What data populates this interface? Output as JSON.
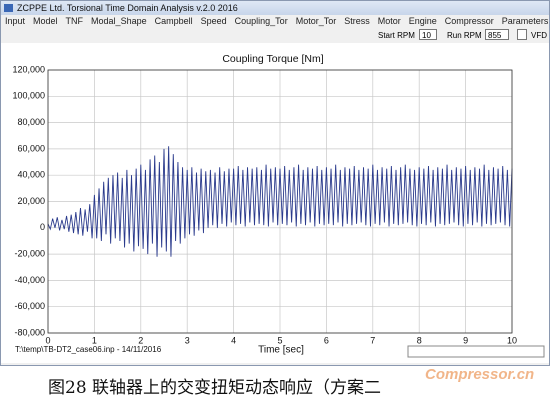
{
  "window": {
    "title": "ZCPPE Ltd. Torsional Time Domain Analysis v.2.0 2016"
  },
  "menu": [
    "Input",
    "Model",
    "TNF",
    "Modal_Shape",
    "Campbell",
    "Speed",
    "Coupling_Tor",
    "Motor_Tor",
    "Stress",
    "Motor",
    "Engine",
    "Compressor",
    "Parameters"
  ],
  "toolbar": {
    "start_rpm_label": "Start RPM",
    "start_rpm_value": "10",
    "run_rpm_label": "Run RPM",
    "run_rpm_value": "855",
    "vfd_label": "VFD"
  },
  "status": {
    "file": "T:\\temp\\TB-DT2_case06.inp - 14/11/2016"
  },
  "caption": "图28 联轴器上的交变扭矩动态响应（方案二",
  "watermark": "Compressor.cn",
  "chart_data": {
    "type": "line",
    "title": "Coupling Torque [Nm]",
    "x_label": "Time [sec]",
    "x": [
      0,
      0.05,
      0.1,
      0.15,
      0.2,
      0.25,
      0.3,
      0.35,
      0.4,
      0.45,
      0.5,
      0.55,
      0.6,
      0.65,
      0.7,
      0.75,
      0.8,
      0.85,
      0.9,
      0.95,
      1,
      1.05,
      1.1,
      1.15,
      1.2,
      1.25,
      1.3,
      1.35,
      1.4,
      1.45,
      1.5,
      1.55,
      1.6,
      1.65,
      1.7,
      1.75,
      1.8,
      1.85,
      1.9,
      1.95,
      2,
      2.05,
      2.1,
      2.15,
      2.2,
      2.25,
      2.3,
      2.35,
      2.4,
      2.45,
      2.5,
      2.55,
      2.6,
      2.65,
      2.7,
      2.75,
      2.8,
      2.85,
      2.9,
      2.95,
      3,
      3.05,
      3.1,
      3.15,
      3.2,
      3.25,
      3.3,
      3.35,
      3.4,
      3.45,
      3.5,
      3.55,
      3.6,
      3.65,
      3.7,
      3.75,
      3.8,
      3.85,
      3.9,
      3.95,
      4,
      4.05,
      4.1,
      4.15,
      4.2,
      4.25,
      4.3,
      4.35,
      4.4,
      4.45,
      4.5,
      4.55,
      4.6,
      4.65,
      4.7,
      4.75,
      4.8,
      4.85,
      4.9,
      4.95,
      5,
      5.05,
      5.1,
      5.15,
      5.2,
      5.25,
      5.3,
      5.35,
      5.4,
      5.45,
      5.5,
      5.55,
      5.6,
      5.65,
      5.7,
      5.75,
      5.8,
      5.85,
      5.9,
      5.95,
      6,
      6.05,
      6.1,
      6.15,
      6.2,
      6.25,
      6.3,
      6.35,
      6.4,
      6.45,
      6.5,
      6.55,
      6.6,
      6.65,
      6.7,
      6.75,
      6.8,
      6.85,
      6.9,
      6.95,
      7,
      7.05,
      7.1,
      7.15,
      7.2,
      7.25,
      7.3,
      7.35,
      7.4,
      7.45,
      7.5,
      7.55,
      7.6,
      7.65,
      7.7,
      7.75,
      7.8,
      7.85,
      7.9,
      7.95,
      8,
      8.05,
      8.1,
      8.15,
      8.2,
      8.25,
      8.3,
      8.35,
      8.4,
      8.45,
      8.5,
      8.55,
      8.6,
      8.65,
      8.7,
      8.75,
      8.8,
      8.85,
      8.9,
      8.95,
      9,
      9.05,
      9.1,
      9.15,
      9.2,
      9.25,
      9.3,
      9.35,
      9.4,
      9.45,
      9.5,
      9.55,
      9.6,
      9.65,
      9.7,
      9.75,
      9.8,
      9.85,
      9.9,
      9.95,
      10
    ],
    "series": [
      {
        "color": "#2a3a8c",
        "values": [
          3000,
          -1000,
          7000,
          0,
          8000,
          -2000,
          6000,
          -1000,
          9000,
          -3000,
          10000,
          -4000,
          12000,
          -5000,
          15000,
          -6000,
          14000,
          -3000,
          18000,
          -8000,
          25000,
          -8000,
          30000,
          -10000,
          35000,
          -5000,
          38000,
          -12000,
          40000,
          -8000,
          42000,
          -10000,
          38000,
          -15000,
          44000,
          -12000,
          40000,
          -18000,
          45000,
          -14000,
          48000,
          -16000,
          44000,
          -20000,
          52000,
          -12000,
          55000,
          -22000,
          50000,
          -15000,
          60000,
          -18000,
          62000,
          -22000,
          56000,
          -10000,
          50000,
          -12000,
          46000,
          -8000,
          44000,
          -5000,
          46000,
          -6000,
          42000,
          -2000,
          45000,
          -4000,
          43000,
          0,
          44000,
          2000,
          42000,
          0,
          46000,
          3000,
          43000,
          1000,
          45000,
          4000,
          45000,
          2000,
          47000,
          3000,
          44000,
          1000,
          46000,
          4000,
          45000,
          2000,
          46000,
          3000,
          44000,
          2000,
          48000,
          1000,
          45000,
          4000,
          46000,
          2000,
          45000,
          3000,
          47000,
          2000,
          44000,
          4000,
          46000,
          1000,
          48000,
          3000,
          44000,
          2000,
          46000,
          4000,
          45000,
          1000,
          47000,
          3000,
          44000,
          2000,
          46000,
          3000,
          45000,
          2000,
          48000,
          4000,
          44000,
          1000,
          46000,
          3000,
          45000,
          2000,
          47000,
          3000,
          44000,
          4000,
          46000,
          2000,
          45000,
          1000,
          48000,
          3000,
          44000,
          2000,
          46000,
          4000,
          45000,
          1000,
          47000,
          3000,
          44000,
          2000,
          46000,
          3000,
          48000,
          4000,
          45000,
          2000,
          44000,
          1000,
          46000,
          3000,
          45000,
          2000,
          47000,
          4000,
          44000,
          1000,
          46000,
          3000,
          45000,
          2000,
          48000,
          3000,
          44000,
          4000,
          46000,
          2000,
          45000,
          1000,
          47000,
          3000,
          44000,
          2000,
          46000,
          4000,
          45000,
          1000,
          48000,
          3000,
          44000,
          2000,
          46000,
          3000,
          45000,
          4000,
          47000,
          2000,
          44000,
          1000,
          45000
        ]
      }
    ],
    "xlim": [
      0,
      10
    ],
    "xticks": [
      0,
      1,
      2,
      3,
      4,
      5,
      6,
      7,
      8,
      9,
      10
    ],
    "ylim": [
      -80000,
      120000
    ],
    "yticks": [
      {
        "value": -80000,
        "label": "-80,000"
      },
      {
        "value": -60000,
        "label": "-60,000"
      },
      {
        "value": -40000,
        "label": "-40,000"
      },
      {
        "value": -20000,
        "label": "-20,000"
      },
      0,
      {
        "value": 20000,
        "label": "20,000"
      },
      {
        "value": 40000,
        "label": "40,000"
      },
      {
        "value": 60000,
        "label": "60,000"
      },
      {
        "value": 80000,
        "label": "80,000"
      },
      {
        "value": 100000,
        "label": "100,000"
      },
      {
        "value": 120000,
        "label": "120,000"
      }
    ],
    "grid": true
  }
}
